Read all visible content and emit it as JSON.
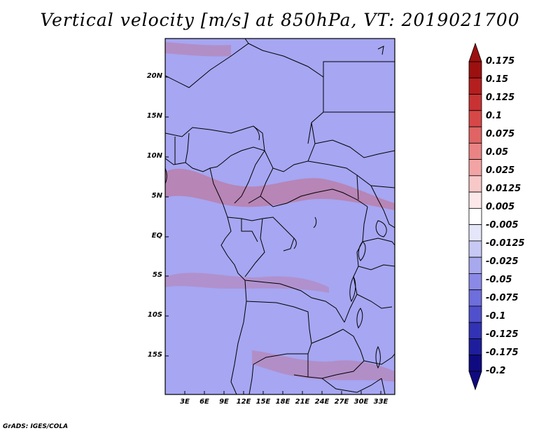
{
  "title": "Vertical velocity [m/s] at 850hPa, VT: 2019021700",
  "lat_labels": [
    "20N",
    "15N",
    "10N",
    "5N",
    "EQ",
    "5S",
    "10S",
    "15S"
  ],
  "lon_labels": [
    "3E",
    "6E",
    "9E",
    "12E",
    "15E",
    "18E",
    "21E",
    "24E",
    "27E",
    "30E",
    "33E"
  ],
  "colorbar": {
    "labels": [
      "0.175",
      "0.15",
      "0.125",
      "0.1",
      "0.075",
      "0.05",
      "0.025",
      "0.0125",
      "0.005",
      "-0.005",
      "-0.0125",
      "-0.025",
      "-0.05",
      "-0.075",
      "-0.1",
      "-0.125",
      "-0.175",
      "-0.2"
    ],
    "colors": [
      "#9c1010",
      "#b41e1e",
      "#c83232",
      "#d64848",
      "#e06464",
      "#ea8484",
      "#f2a4a4",
      "#f8c8c8",
      "#fce8e8",
      "#ffffff",
      "#e6e6fa",
      "#c8c8f4",
      "#a8a8ee",
      "#8a8ae6",
      "#6e6edc",
      "#5050cc",
      "#3232b4",
      "#1e1e9c",
      "#100a80"
    ]
  },
  "footer": "GrADS: IGES/COLA"
}
